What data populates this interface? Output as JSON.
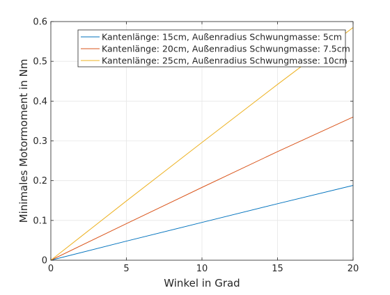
{
  "chart_data": {
    "type": "line",
    "title": "",
    "xlabel": "Winkel in Grad",
    "ylabel": "Minimales Motormoment in Nm",
    "xlim": [
      0,
      20
    ],
    "ylim": [
      0,
      0.6
    ],
    "xticks": [
      0,
      5,
      10,
      15,
      20
    ],
    "xtick_labels": [
      "0",
      "5",
      "10",
      "15",
      "20"
    ],
    "yticks": [
      0,
      0.1,
      0.2,
      0.3,
      0.4,
      0.5,
      0.6
    ],
    "ytick_labels": [
      "0",
      "0.1",
      "0.2",
      "0.3",
      "0.4",
      "0.5",
      "0.6"
    ],
    "grid": true,
    "legend_position": "top-right",
    "series": [
      {
        "name": "Kantenlänge: 15cm, Außenradius Schwungmasse: 5cm",
        "color": "#0072BD",
        "x": [
          0,
          5,
          10,
          15,
          20
        ],
        "y": [
          0,
          0.048,
          0.095,
          0.142,
          0.188
        ]
      },
      {
        "name": "Kantenlänge: 20cm, Außenradius Schwungmasse: 7.5cm",
        "color": "#D95319",
        "x": [
          0,
          5,
          10,
          15,
          20
        ],
        "y": [
          0,
          0.092,
          0.183,
          0.273,
          0.36
        ]
      },
      {
        "name": "Kantenlänge: 25cm, Außenradius Schwungmasse: 10cm",
        "color": "#EDB120",
        "x": [
          0,
          5,
          10,
          15,
          20
        ],
        "y": [
          0,
          0.149,
          0.296,
          0.442,
          0.585
        ]
      }
    ]
  }
}
